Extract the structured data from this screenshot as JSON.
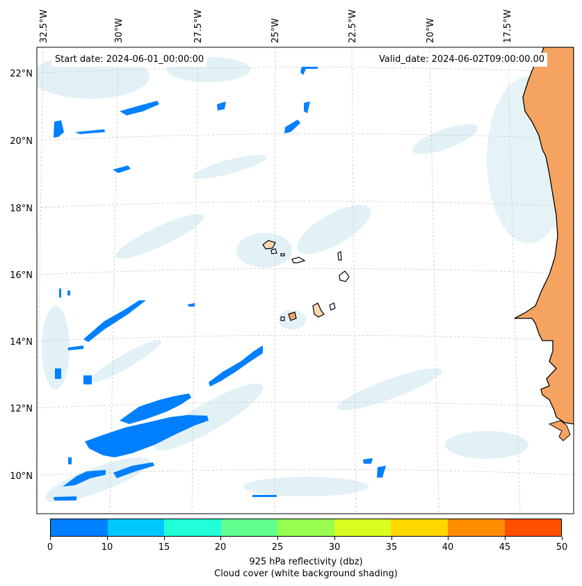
{
  "map": {
    "start_label": "Start date: 2024-06-01_00:00:00",
    "valid_label": "Valid_date: 2024-06-02T09:00:00.00",
    "lon_labels": [
      "32.5°W",
      "30°W",
      "27.5°W",
      "25°W",
      "22.5°W",
      "20°W",
      "17.5°W"
    ],
    "lat_labels": [
      "22°N",
      "20°N",
      "18°N",
      "16°N",
      "14°N",
      "12°N",
      "10°N"
    ],
    "land_color": "#f4a460",
    "ocean_color": "#ffffff",
    "cloud_color": "#add8e6",
    "reflectivity_fill": "#0080ff"
  },
  "colorbar": {
    "ticks": [
      "0",
      "10",
      "15",
      "20",
      "25",
      "30",
      "35",
      "40",
      "45",
      "50"
    ],
    "colors": [
      "#0080ff",
      "#00c8ff",
      "#20ffd8",
      "#60ff90",
      "#98ff50",
      "#d8ff20",
      "#ffd800",
      "#ff8c00",
      "#ff5000"
    ],
    "label_line1": "925 hPa reflectivity (dbz)",
    "label_line2": "Cloud cover (white background shading)"
  }
}
